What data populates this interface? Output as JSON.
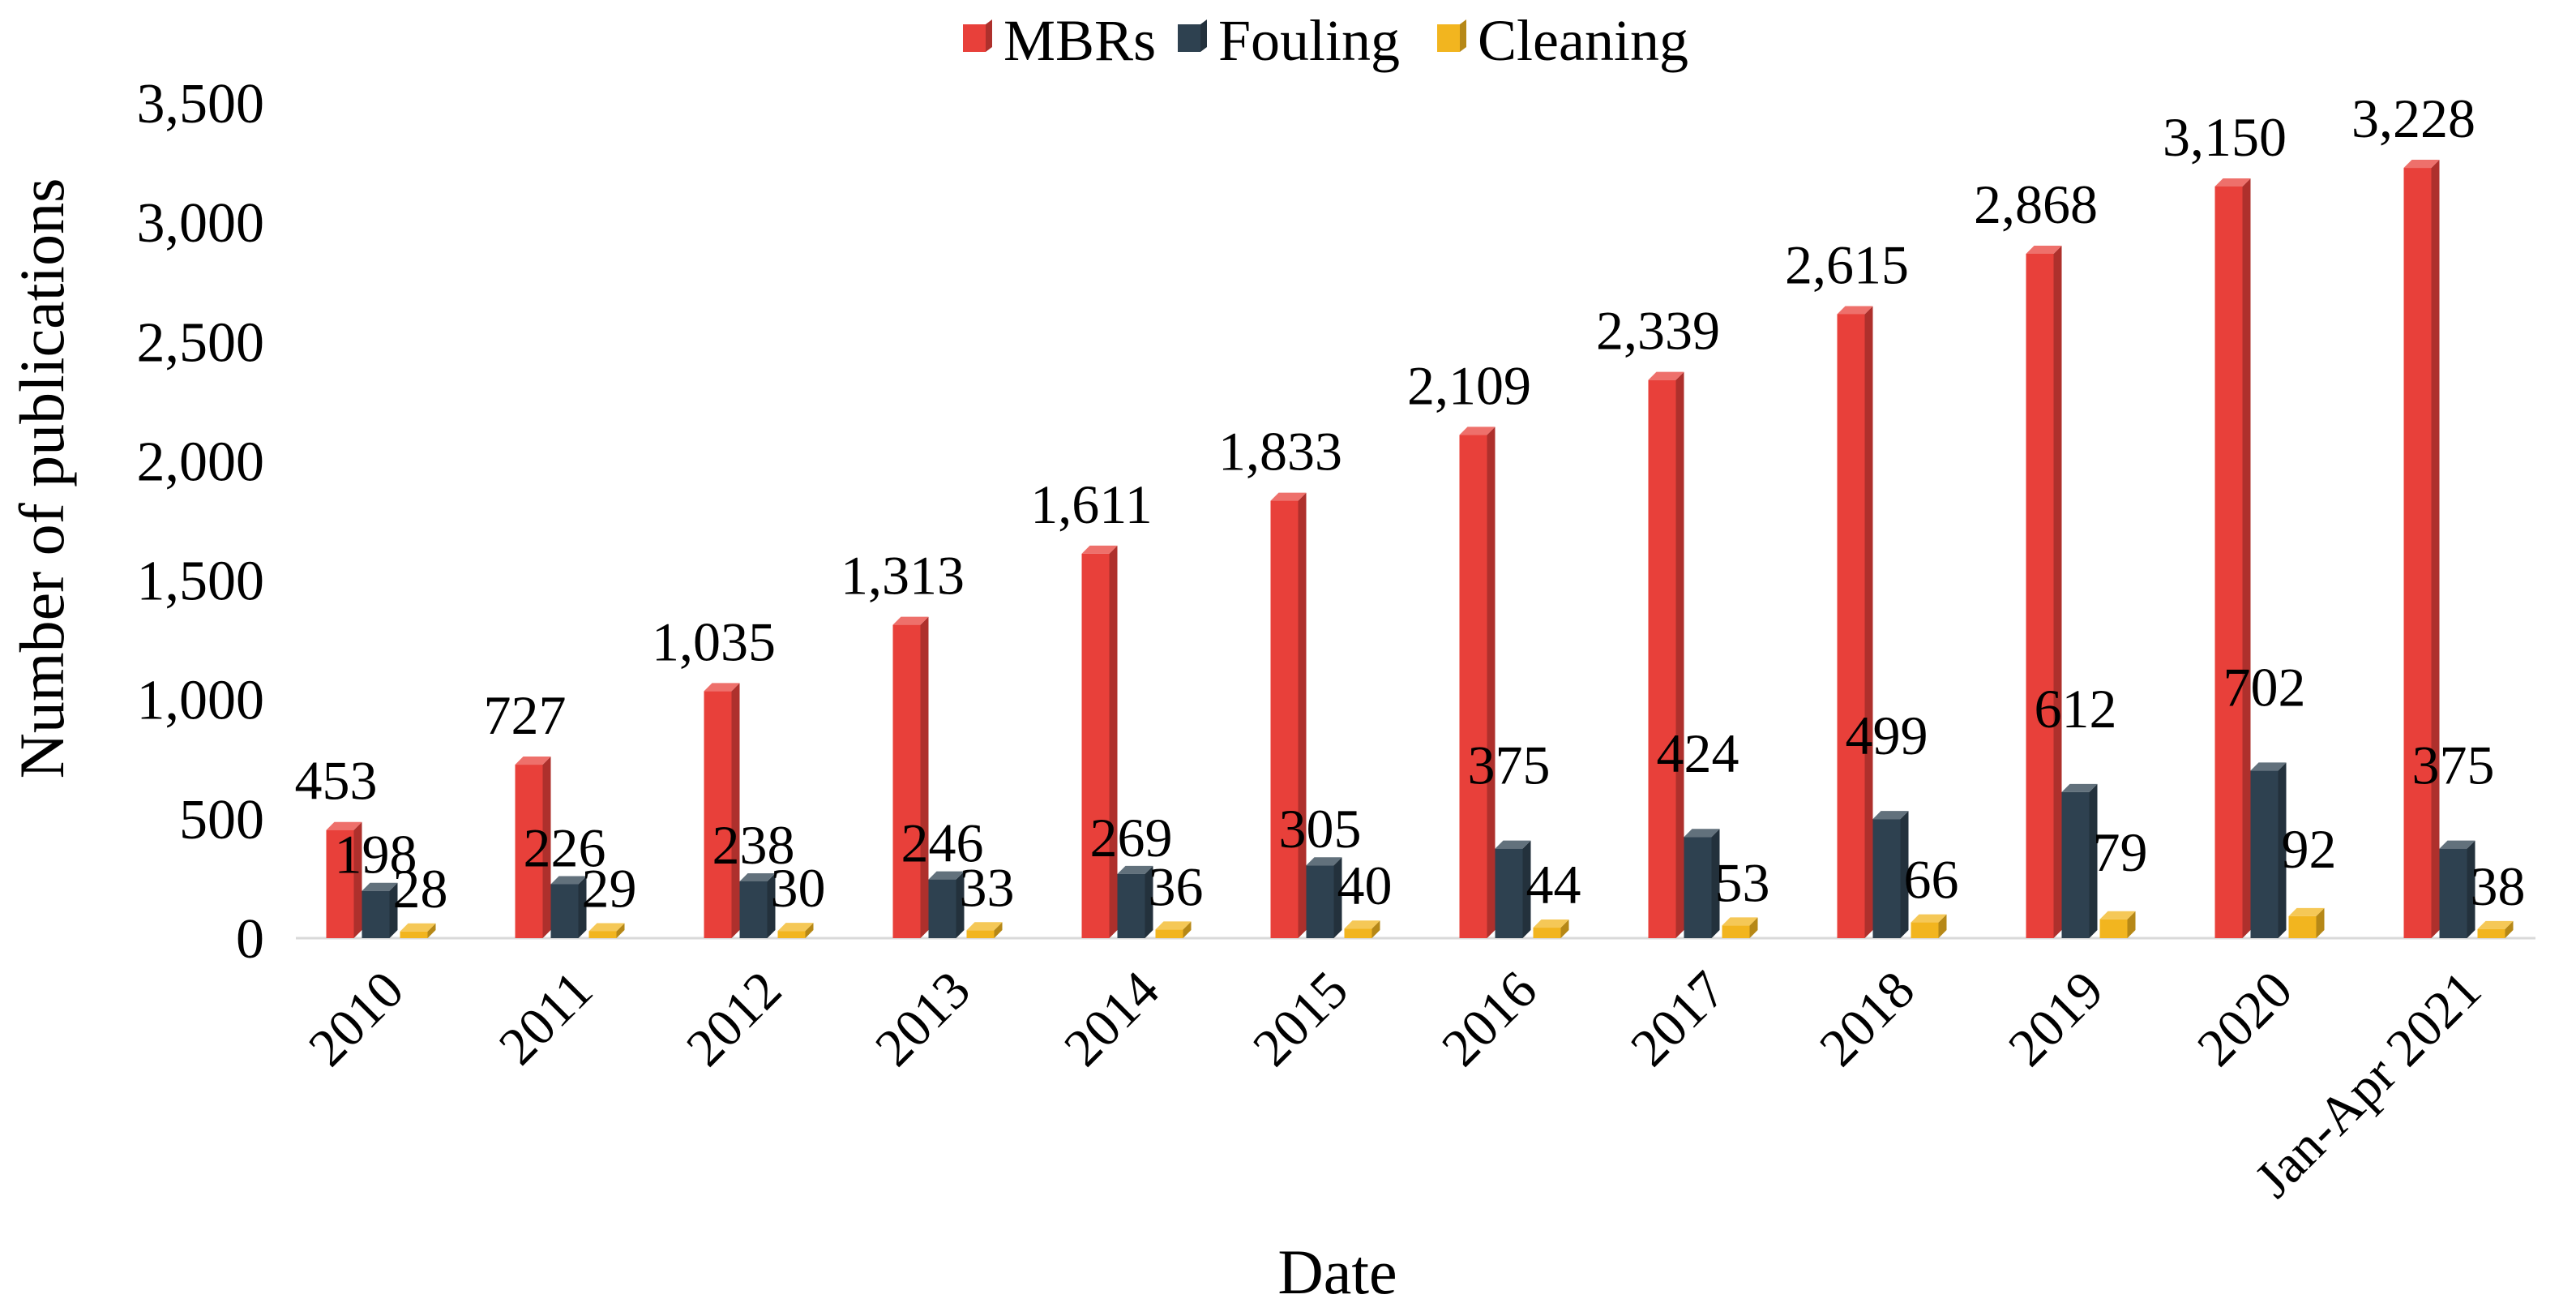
{
  "chart_data": {
    "type": "bar",
    "title": "",
    "xlabel": "Date",
    "ylabel": "Number of publications",
    "ylim": [
      0,
      3500
    ],
    "yticks": [
      0,
      500,
      1000,
      1500,
      2000,
      2500,
      3000,
      3500
    ],
    "ytick_labels": [
      "0",
      "500",
      "1,000",
      "1,500",
      "2,000",
      "2,500",
      "3,000",
      "3,500"
    ],
    "grid": false,
    "legend_position": "top",
    "categories": [
      "2010",
      "2011",
      "2012",
      "2013",
      "2014",
      "2015",
      "2016",
      "2017",
      "2018",
      "2019",
      "2020",
      "Jan-Apr 2021"
    ],
    "series": [
      {
        "name": "MBRs",
        "color": "#e8403a",
        "values": [
          453,
          727,
          1035,
          1313,
          1611,
          1833,
          2109,
          2339,
          2615,
          2868,
          3150,
          3228
        ],
        "labels": [
          "453",
          "727",
          "1,035",
          "1,313",
          "1,611",
          "1,833",
          "2,109",
          "2,339",
          "2,615",
          "2,868",
          "3,150",
          "3,228"
        ]
      },
      {
        "name": "Fouling",
        "color": "#2e4150",
        "values": [
          198,
          226,
          238,
          246,
          269,
          305,
          375,
          424,
          499,
          612,
          702,
          375
        ],
        "labels": [
          "198",
          "226",
          "238",
          "246",
          "269",
          "305",
          "375",
          "424",
          "499",
          "612",
          "702",
          "375"
        ]
      },
      {
        "name": "Cleaning",
        "color": "#f2b51f",
        "values": [
          28,
          29,
          30,
          33,
          36,
          40,
          44,
          53,
          66,
          79,
          92,
          38
        ],
        "labels": [
          "28",
          "29",
          "30",
          "33",
          "36",
          "40",
          "44",
          "53",
          "66",
          "79",
          "92",
          "38"
        ]
      }
    ]
  }
}
